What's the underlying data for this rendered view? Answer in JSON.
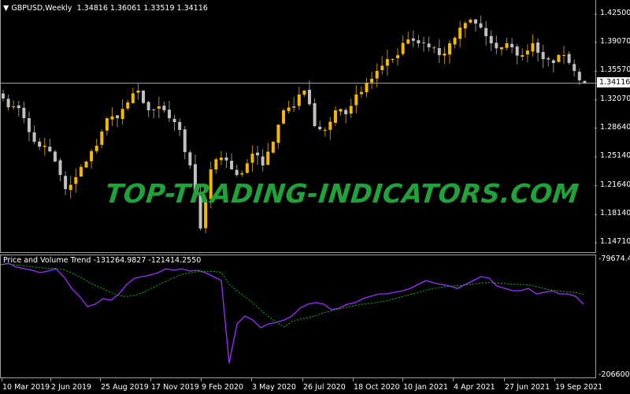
{
  "header": {
    "symbol_line": "GBPUSD,Weekly",
    "ohlc": "1.34816 1.36061 1.33519 1.34116"
  },
  "watermark": "TOP-TRADING-INDICATORS.COM",
  "colors": {
    "up": "#f5b800",
    "up_wick": "#b88a00",
    "down": "#c0c0c0",
    "down_wick": "#909090",
    "pvt": "#9b30ff",
    "signal": "#00c000",
    "watermark": "#1fa23a",
    "price_line": "#a0a0a0"
  },
  "chart_data": [
    {
      "type": "candlestick",
      "title": "GBPUSD,Weekly",
      "ylim": [
        1.1471,
        1.425
      ],
      "yticks": [
        "1.42500",
        "1.39070",
        "1.35570",
        "1.32070",
        "1.28640",
        "1.25140",
        "1.21640",
        "1.18140",
        "1.14710"
      ],
      "current_price": "1.34116",
      "closes": [
        1.3225,
        1.3129,
        1.2985,
        1.2698,
        1.265,
        1.2458,
        1.2123,
        1.2267,
        1.2458,
        1.265,
        1.2985,
        1.2985,
        1.3177,
        1.3321,
        1.3081,
        1.3129,
        1.2985,
        1.2842,
        1.2411,
        1.1644,
        1.2363,
        1.2506,
        1.2363,
        1.2315,
        1.2554,
        1.2411,
        1.2698,
        1.3081,
        1.3129,
        1.3321,
        1.289,
        1.2842,
        1.3081,
        1.3033,
        1.3273,
        1.3417,
        1.356,
        1.3704,
        1.3752,
        1.3943,
        1.3896,
        1.3848,
        1.3752,
        1.3896,
        1.4087,
        1.4183,
        1.4087,
        1.3896,
        1.3848,
        1.3848,
        1.3752,
        1.3896,
        1.3704,
        1.3656,
        1.3752,
        1.356,
        1.3412
      ],
      "xticks": [
        "10 Mar 2019",
        "2 Jun 2019",
        "25 Aug 2019",
        "17 Nov 2019",
        "9 Feb 2020",
        "3 May 2020",
        "26 Jul 2020",
        "18 Oct 2020",
        "10 Jan 2021",
        "4 Apr 2021",
        "27 Jun 2021",
        "19 Sep 2021"
      ]
    },
    {
      "type": "line",
      "title": "Price and Volume Trend",
      "values_text": "-131264.9827 -121414.2550",
      "ylim": [
        -206600.18,
        -79674.466
      ],
      "yticks": [
        "-79674.466",
        "-206600.18"
      ],
      "series": [
        {
          "values": [
            -85677,
            -83962,
            -88250,
            -89965,
            -91680,
            -94253,
            -92538,
            -89965,
            -98541,
            -111405,
            -119981,
            -131130,
            -128557,
            -122554,
            -124269,
            -117408,
            -107117,
            -100256,
            -98541,
            -96826,
            -94253,
            -89965,
            -91680,
            -89965,
            -92538,
            -91680,
            -94253,
            -98541,
            -102829,
            -192877,
            -149997,
            -141421,
            -145709,
            -154285,
            -149997,
            -148282,
            -145709,
            -141421,
            -132845,
            -128557,
            -126842,
            -128557,
            -134560,
            -132845,
            -128557,
            -126842,
            -122554,
            -119981,
            -117408,
            -117408,
            -115693,
            -113978,
            -111405,
            -107117,
            -102829,
            -105402,
            -107117,
            -108832,
            -111405,
            -107117,
            -102829,
            -98541,
            -100256,
            -108832,
            -111405,
            -113978,
            -113978,
            -111405,
            -117408,
            -115693,
            -113978,
            -117408,
            -117408,
            -119981,
            -128557
          ]
        }
      ]
    }
  ]
}
